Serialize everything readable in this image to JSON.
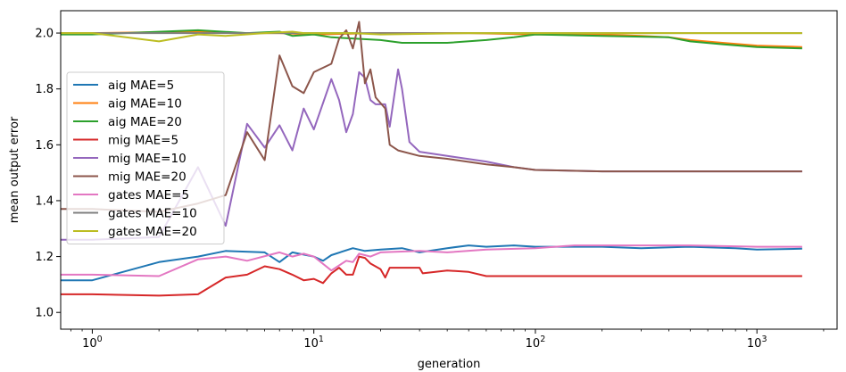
{
  "chart_data": {
    "type": "line",
    "title": "",
    "xlabel": "generation",
    "ylabel": "mean output error",
    "xscale": "log",
    "xlim": [
      0.72,
      2300
    ],
    "ylim": [
      0.94,
      2.08
    ],
    "xticks": [
      {
        "value": 1,
        "base": "10",
        "exp": "0"
      },
      {
        "value": 10,
        "base": "10",
        "exp": "1"
      },
      {
        "value": 100,
        "base": "10",
        "exp": "2"
      },
      {
        "value": 1000,
        "base": "10",
        "exp": "3"
      }
    ],
    "yticks": [
      {
        "value": 1.0,
        "label": "1.0"
      },
      {
        "value": 1.2,
        "label": "1.2"
      },
      {
        "value": 1.4,
        "label": "1.4"
      },
      {
        "value": 1.6,
        "label": "1.6"
      },
      {
        "value": 1.8,
        "label": "1.8"
      },
      {
        "value": 2.0,
        "label": "2.0"
      }
    ],
    "legend_position": "center-left",
    "series": [
      {
        "name": "aig MAE=5",
        "color": "#1f77b4",
        "points": [
          [
            0.7,
            1.115
          ],
          [
            1,
            1.115
          ],
          [
            2,
            1.18
          ],
          [
            3,
            1.2
          ],
          [
            4,
            1.22
          ],
          [
            6,
            1.215
          ],
          [
            7,
            1.18
          ],
          [
            8,
            1.215
          ],
          [
            10,
            1.2
          ],
          [
            11,
            1.185
          ],
          [
            12,
            1.205
          ],
          [
            15,
            1.23
          ],
          [
            17,
            1.22
          ],
          [
            20,
            1.225
          ],
          [
            25,
            1.23
          ],
          [
            30,
            1.215
          ],
          [
            40,
            1.23
          ],
          [
            50,
            1.24
          ],
          [
            60,
            1.235
          ],
          [
            80,
            1.24
          ],
          [
            100,
            1.235
          ],
          [
            200,
            1.235
          ],
          [
            300,
            1.23
          ],
          [
            500,
            1.235
          ],
          [
            800,
            1.23
          ],
          [
            1000,
            1.225
          ],
          [
            1600,
            1.228
          ]
        ]
      },
      {
        "name": "aig MAE=10",
        "color": "#ff7f0e",
        "points": [
          [
            0.7,
            2.0
          ],
          [
            1,
            2.0
          ],
          [
            3,
            2.005
          ],
          [
            5,
            2.0
          ],
          [
            7,
            2.0
          ],
          [
            10,
            1.995
          ],
          [
            20,
            2.0
          ],
          [
            50,
            2.0
          ],
          [
            100,
            1.995
          ],
          [
            200,
            1.995
          ],
          [
            300,
            1.99
          ],
          [
            400,
            1.985
          ],
          [
            500,
            1.975
          ],
          [
            700,
            1.965
          ],
          [
            1000,
            1.955
          ],
          [
            1600,
            1.95
          ]
        ]
      },
      {
        "name": "aig MAE=20",
        "color": "#2ca02c",
        "points": [
          [
            0.7,
            1.995
          ],
          [
            1,
            1.995
          ],
          [
            3,
            2.01
          ],
          [
            5,
            2.0
          ],
          [
            7,
            2.005
          ],
          [
            8,
            1.99
          ],
          [
            10,
            1.995
          ],
          [
            12,
            1.985
          ],
          [
            20,
            1.975
          ],
          [
            25,
            1.965
          ],
          [
            40,
            1.965
          ],
          [
            60,
            1.975
          ],
          [
            80,
            1.985
          ],
          [
            100,
            1.995
          ],
          [
            200,
            1.99
          ],
          [
            400,
            1.985
          ],
          [
            500,
            1.97
          ],
          [
            700,
            1.96
          ],
          [
            1000,
            1.95
          ],
          [
            1600,
            1.945
          ]
        ]
      },
      {
        "name": "mig MAE=5",
        "color": "#d62728",
        "points": [
          [
            0.7,
            1.065
          ],
          [
            1,
            1.065
          ],
          [
            2,
            1.06
          ],
          [
            3,
            1.065
          ],
          [
            4,
            1.125
          ],
          [
            5,
            1.135
          ],
          [
            6,
            1.165
          ],
          [
            7,
            1.155
          ],
          [
            8,
            1.135
          ],
          [
            9,
            1.115
          ],
          [
            10,
            1.12
          ],
          [
            11,
            1.105
          ],
          [
            12,
            1.14
          ],
          [
            13,
            1.16
          ],
          [
            14,
            1.135
          ],
          [
            15,
            1.135
          ],
          [
            16,
            1.2
          ],
          [
            17,
            1.195
          ],
          [
            18,
            1.175
          ],
          [
            20,
            1.155
          ],
          [
            21,
            1.125
          ],
          [
            22,
            1.16
          ],
          [
            30,
            1.16
          ],
          [
            31,
            1.14
          ],
          [
            40,
            1.15
          ],
          [
            50,
            1.145
          ],
          [
            60,
            1.13
          ],
          [
            100,
            1.13
          ],
          [
            1000,
            1.13
          ],
          [
            1600,
            1.13
          ]
        ]
      },
      {
        "name": "mig MAE=10",
        "color": "#9467bd",
        "points": [
          [
            0.7,
            1.26
          ],
          [
            1,
            1.26
          ],
          [
            2,
            1.27
          ],
          [
            3,
            1.52
          ],
          [
            4,
            1.31
          ],
          [
            5,
            1.675
          ],
          [
            6,
            1.59
          ],
          [
            7,
            1.67
          ],
          [
            8,
            1.58
          ],
          [
            9,
            1.73
          ],
          [
            10,
            1.655
          ],
          [
            12,
            1.835
          ],
          [
            13,
            1.76
          ],
          [
            14,
            1.645
          ],
          [
            15,
            1.71
          ],
          [
            16,
            1.86
          ],
          [
            17,
            1.84
          ],
          [
            18,
            1.76
          ],
          [
            19,
            1.745
          ],
          [
            21,
            1.745
          ],
          [
            22,
            1.665
          ],
          [
            24,
            1.87
          ],
          [
            25,
            1.8
          ],
          [
            27,
            1.61
          ],
          [
            30,
            1.575
          ],
          [
            40,
            1.56
          ],
          [
            60,
            1.54
          ],
          [
            80,
            1.52
          ],
          [
            100,
            1.51
          ],
          [
            200,
            1.505
          ],
          [
            1600,
            1.505
          ]
        ]
      },
      {
        "name": "mig MAE=20",
        "color": "#8c564b",
        "points": [
          [
            0.7,
            1.37
          ],
          [
            1,
            1.37
          ],
          [
            2,
            1.36
          ],
          [
            3,
            1.39
          ],
          [
            4,
            1.42
          ],
          [
            5,
            1.645
          ],
          [
            6,
            1.545
          ],
          [
            7,
            1.92
          ],
          [
            8,
            1.81
          ],
          [
            9,
            1.785
          ],
          [
            10,
            1.86
          ],
          [
            12,
            1.89
          ],
          [
            13,
            1.98
          ],
          [
            14,
            2.01
          ],
          [
            15,
            1.945
          ],
          [
            16,
            2.04
          ],
          [
            17,
            1.82
          ],
          [
            18,
            1.87
          ],
          [
            19,
            1.77
          ],
          [
            21,
            1.73
          ],
          [
            22,
            1.6
          ],
          [
            24,
            1.58
          ],
          [
            30,
            1.56
          ],
          [
            40,
            1.55
          ],
          [
            60,
            1.53
          ],
          [
            80,
            1.52
          ],
          [
            100,
            1.51
          ],
          [
            200,
            1.505
          ],
          [
            1600,
            1.505
          ]
        ]
      },
      {
        "name": "gates MAE=5",
        "color": "#e377c2",
        "points": [
          [
            0.7,
            1.135
          ],
          [
            1,
            1.135
          ],
          [
            2,
            1.13
          ],
          [
            3,
            1.19
          ],
          [
            4,
            1.2
          ],
          [
            5,
            1.185
          ],
          [
            7,
            1.215
          ],
          [
            8,
            1.2
          ],
          [
            9,
            1.21
          ],
          [
            10,
            1.2
          ],
          [
            12,
            1.15
          ],
          [
            14,
            1.185
          ],
          [
            15,
            1.18
          ],
          [
            16,
            1.21
          ],
          [
            18,
            1.2
          ],
          [
            20,
            1.215
          ],
          [
            30,
            1.22
          ],
          [
            40,
            1.215
          ],
          [
            60,
            1.225
          ],
          [
            100,
            1.23
          ],
          [
            150,
            1.24
          ],
          [
            200,
            1.24
          ],
          [
            500,
            1.24
          ],
          [
            1000,
            1.235
          ],
          [
            1600,
            1.235
          ]
        ]
      },
      {
        "name": "gates MAE=10",
        "color": "#7f7f7f",
        "points": [
          [
            0.7,
            2.0
          ],
          [
            1,
            2.0
          ],
          [
            10,
            2.0
          ],
          [
            100,
            2.0
          ],
          [
            1000,
            2.0
          ],
          [
            1600,
            2.0
          ]
        ]
      },
      {
        "name": "gates MAE=20",
        "color": "#bcbd22",
        "points": [
          [
            0.7,
            2.0
          ],
          [
            1,
            2.0
          ],
          [
            2,
            1.97
          ],
          [
            3,
            1.995
          ],
          [
            4,
            1.99
          ],
          [
            6,
            2.0
          ],
          [
            8,
            2.005
          ],
          [
            9,
            2.0
          ],
          [
            15,
            2.0
          ],
          [
            20,
            1.995
          ],
          [
            50,
            2.0
          ],
          [
            100,
            2.0
          ],
          [
            1600,
            2.0
          ]
        ]
      }
    ]
  }
}
